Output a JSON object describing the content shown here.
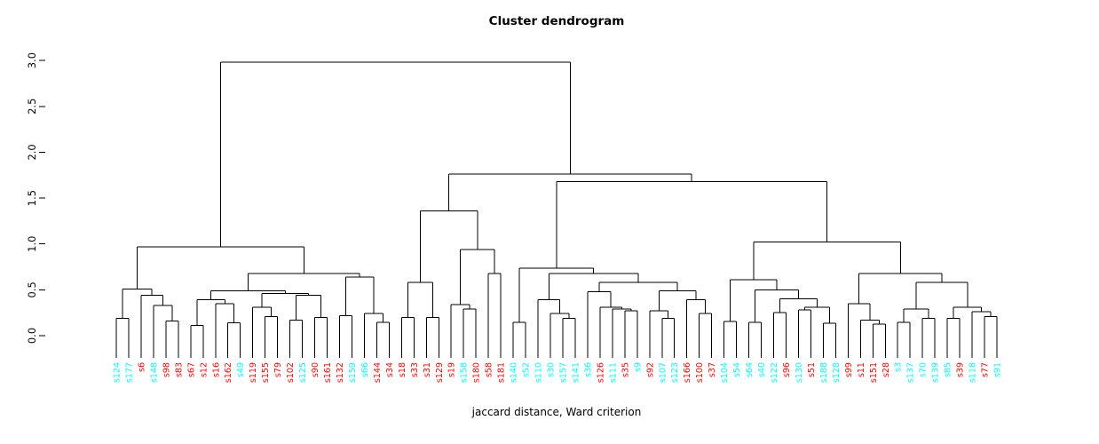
{
  "chart": {
    "title": "Cluster dendrogram",
    "xlabel": "jaccard distance, Ward criterion"
  },
  "chart_data": {
    "type": "dendrogram",
    "title": "Cluster dendrogram",
    "xlabel": "jaccard distance, Ward criterion",
    "ylabel": "",
    "ylim": [
      0.0,
      3.0
    ],
    "grid": false,
    "legend_position": "none",
    "yticks": [
      {
        "v": 0.0,
        "label": "0.0"
      },
      {
        "v": 0.5,
        "label": "0.5"
      },
      {
        "v": 1.0,
        "label": "1.0"
      },
      {
        "v": 1.5,
        "label": "1.5"
      },
      {
        "v": 2.0,
        "label": "2.0"
      },
      {
        "v": 2.5,
        "label": "2.5"
      },
      {
        "v": 3.0,
        "label": "3.0"
      }
    ],
    "label_colors": {
      "red": "#FF0000",
      "cyan": "#00FFFF"
    },
    "line_color": "#000000",
    "leaves": [
      {
        "label": "s124",
        "color": "cyan"
      },
      {
        "label": "s177",
        "color": "cyan"
      },
      {
        "label": "s6",
        "color": "red"
      },
      {
        "label": "s148",
        "color": "cyan"
      },
      {
        "label": "s98",
        "color": "red"
      },
      {
        "label": "s83",
        "color": "red"
      },
      {
        "label": "s67",
        "color": "red"
      },
      {
        "label": "s12",
        "color": "red"
      },
      {
        "label": "s16",
        "color": "red"
      },
      {
        "label": "s162",
        "color": "red"
      },
      {
        "label": "s49",
        "color": "cyan"
      },
      {
        "label": "s119",
        "color": "red"
      },
      {
        "label": "s155",
        "color": "red"
      },
      {
        "label": "s79",
        "color": "red"
      },
      {
        "label": "s102",
        "color": "red"
      },
      {
        "label": "s125",
        "color": "cyan"
      },
      {
        "label": "s90",
        "color": "red"
      },
      {
        "label": "s161",
        "color": "red"
      },
      {
        "label": "s132",
        "color": "red"
      },
      {
        "label": "s159",
        "color": "cyan"
      },
      {
        "label": "s66",
        "color": "cyan"
      },
      {
        "label": "s144",
        "color": "red"
      },
      {
        "label": "s34",
        "color": "red"
      },
      {
        "label": "s18",
        "color": "red"
      },
      {
        "label": "s33",
        "color": "red"
      },
      {
        "label": "s31",
        "color": "red"
      },
      {
        "label": "s129",
        "color": "red"
      },
      {
        "label": "s19",
        "color": "red"
      },
      {
        "label": "s158",
        "color": "cyan"
      },
      {
        "label": "s180",
        "color": "red"
      },
      {
        "label": "s58",
        "color": "red"
      },
      {
        "label": "s181",
        "color": "red"
      },
      {
        "label": "s140",
        "color": "cyan"
      },
      {
        "label": "s52",
        "color": "cyan"
      },
      {
        "label": "s110",
        "color": "cyan"
      },
      {
        "label": "s30",
        "color": "cyan"
      },
      {
        "label": "s157",
        "color": "cyan"
      },
      {
        "label": "s141",
        "color": "cyan"
      },
      {
        "label": "s36",
        "color": "cyan"
      },
      {
        "label": "s126",
        "color": "red"
      },
      {
        "label": "s111",
        "color": "cyan"
      },
      {
        "label": "s35",
        "color": "red"
      },
      {
        "label": "s9",
        "color": "cyan"
      },
      {
        "label": "s92",
        "color": "red"
      },
      {
        "label": "s107",
        "color": "cyan"
      },
      {
        "label": "s123",
        "color": "cyan"
      },
      {
        "label": "s166",
        "color": "red"
      },
      {
        "label": "s100",
        "color": "red"
      },
      {
        "label": "s37",
        "color": "red"
      },
      {
        "label": "s104",
        "color": "cyan"
      },
      {
        "label": "s54",
        "color": "cyan"
      },
      {
        "label": "s64",
        "color": "cyan"
      },
      {
        "label": "s40",
        "color": "cyan"
      },
      {
        "label": "s122",
        "color": "cyan"
      },
      {
        "label": "s96",
        "color": "red"
      },
      {
        "label": "s130",
        "color": "cyan"
      },
      {
        "label": "s51",
        "color": "red"
      },
      {
        "label": "s188",
        "color": "cyan"
      },
      {
        "label": "s128",
        "color": "cyan"
      },
      {
        "label": "s99",
        "color": "red"
      },
      {
        "label": "s11",
        "color": "red"
      },
      {
        "label": "s151",
        "color": "red"
      },
      {
        "label": "s28",
        "color": "red"
      },
      {
        "label": "s3",
        "color": "cyan"
      },
      {
        "label": "s137",
        "color": "cyan"
      },
      {
        "label": "s70",
        "color": "cyan"
      },
      {
        "label": "s139",
        "color": "cyan"
      },
      {
        "label": "s85",
        "color": "cyan"
      },
      {
        "label": "s39",
        "color": "red"
      },
      {
        "label": "s118",
        "color": "cyan"
      },
      {
        "label": "s77",
        "color": "red"
      },
      {
        "label": "s91",
        "color": "cyan"
      }
    ],
    "tree": [
      2.98,
      [
        0.97,
        [
          0.51,
          [
            0.19,
            "s124",
            "s177"
          ],
          [
            0.44,
            "s6",
            [
              0.33,
              "s148",
              [
                0.16,
                "s98",
                "s83"
              ]
            ]
          ]
        ],
        [
          0.68,
          [
            0.49,
            [
              0.39,
              [
                0.11,
                "s67",
                "s12"
              ],
              [
                0.35,
                "s16",
                [
                  0.14,
                  "s162",
                  "s49"
                ]
              ]
            ],
            [
              0.46,
              [
                0.31,
                "s119",
                [
                  0.21,
                  "s155",
                  "s79"
                ]
              ],
              [
                0.44,
                [
                  0.17,
                  "s102",
                  "s125"
                ],
                [
                  0.2,
                  "s90",
                  "s161"
                ]
              ]
            ]
          ],
          [
            0.64,
            [
              0.22,
              "s132",
              "s159"
            ],
            [
              0.24,
              "s66",
              [
                0.145,
                "s144",
                "s34"
              ]
            ]
          ]
        ]
      ],
      [
        1.76,
        [
          1.36,
          [
            0.58,
            [
              0.2,
              "s18",
              "s33"
            ],
            [
              0.2,
              "s31",
              "s129"
            ]
          ],
          [
            0.94,
            [
              0.34,
              "s19",
              [
                0.29,
                "s158",
                "s180"
              ]
            ],
            [
              0.68,
              "s58",
              "s181"
            ]
          ]
        ],
        [
          1.68,
          [
            0.735,
            [
              0.145,
              "s140",
              "s52"
            ],
            [
              0.68,
              [
                0.39,
                "s110",
                [
                  0.24,
                  "s30",
                  [
                    0.19,
                    "s157",
                    "s141"
                  ]
                ]
              ],
              [
                0.58,
                [
                  0.48,
                  "s36",
                  [
                    0.31,
                    "s126",
                    [
                      0.29,
                      "s111",
                      [
                        0.27,
                        "s35",
                        "s9"
                      ]
                    ]
                  ]
                ],
                [
                  0.49,
                  [
                    0.27,
                    "s92",
                    [
                      0.19,
                      "s107",
                      "s123"
                    ]
                  ],
                  [
                    0.39,
                    "s166",
                    [
                      0.24,
                      "s100",
                      "s37"
                    ]
                  ]
                ]
              ]
            ]
          ],
          [
            1.02,
            [
              0.61,
              [
                0.155,
                "s104",
                "s54"
              ],
              [
                0.5,
                [
                  0.145,
                  "s64",
                  "s40"
                ],
                [
                  0.4,
                  [
                    0.25,
                    "s122",
                    "s96"
                  ],
                  [
                    0.31,
                    [
                      0.28,
                      "s130",
                      "s51"
                    ],
                    [
                      0.135,
                      "s188",
                      "s128"
                    ]
                  ]
                ]
              ]
            ],
            [
              0.68,
              [
                0.35,
                "s99",
                [
                  0.17,
                  "s11",
                  [
                    0.125,
                    "s151",
                    "s28"
                  ]
                ]
              ],
              [
                0.58,
                [
                  0.29,
                  [
                    0.145,
                    "s3",
                    "s137"
                  ],
                  [
                    0.19,
                    "s70",
                    "s139"
                  ]
                ],
                [
                  0.31,
                  [
                    0.19,
                    "s85",
                    "s39"
                  ],
                  [
                    0.26,
                    "s118",
                    [
                      0.21,
                      "s77",
                      "s91"
                    ]
                  ]
                ]
              ]
            ]
          ]
        ]
      ]
    ]
  }
}
